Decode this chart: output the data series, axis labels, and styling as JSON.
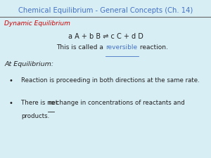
{
  "title": "Chemical Equilibrium - General Concepts (Ch. 14)",
  "title_color": "#4472C4",
  "bg_color": "#D8EEF5",
  "section_label": "Dynamic Equilibrium",
  "section_color": "#CC0000",
  "equation": "a A + b B ⇌ c C + d D",
  "reversible_word": "reversible",
  "reversible_color": "#4472C4",
  "at_equil": "At Equilibrium:",
  "bullet1": "Reaction is proceeding in both directions at the same rate.",
  "bullet2_part1": "There is no ",
  "bullet2_net": "net",
  "bullet2_part2": " change in concentrations of reactants and",
  "bullet2_line2": "products.",
  "text_color": "#222222",
  "divider_color": "#666666"
}
